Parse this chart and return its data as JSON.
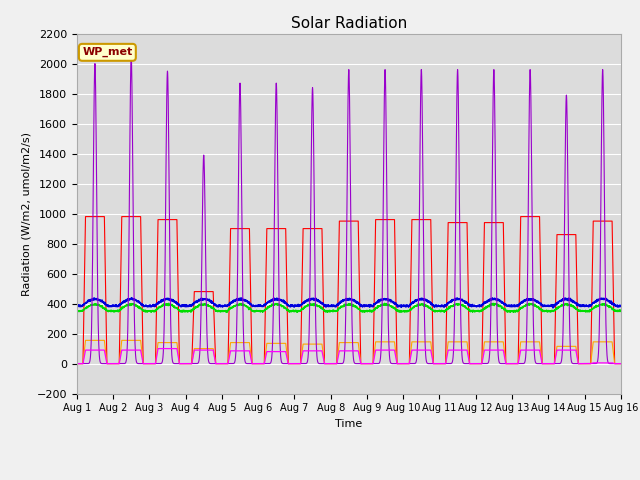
{
  "title": "Solar Radiation",
  "xlabel": "Time",
  "ylabel": "Radiation (W/m2, umol/m2/s)",
  "ylim": [
    -200,
    2200
  ],
  "xlim": [
    0,
    15
  ],
  "yticks": [
    -200,
    0,
    200,
    400,
    600,
    800,
    1000,
    1200,
    1400,
    1600,
    1800,
    2000,
    2200
  ],
  "xtick_labels": [
    "Aug 1",
    "Aug 2",
    "Aug 3",
    "Aug 4",
    "Aug 5",
    "Aug 6",
    "Aug 7",
    "Aug 8",
    "Aug 9",
    "Aug 10",
    "Aug 11",
    "Aug 12",
    "Aug 13",
    "Aug 14",
    "Aug 15",
    "Aug 16"
  ],
  "bg_color": "#dcdcdc",
  "grid_color": "#ffffff",
  "fig_bg": "#f0f0f0",
  "colors": {
    "shortwave_in": "#ff0000",
    "shortwave_out": "#ffa500",
    "longwave_in": "#00dd00",
    "longwave_out": "#0000dd",
    "par_in": "#9900cc",
    "par_out": "#ff00ff"
  },
  "legend_label": "WP_met",
  "legend_bg": "#ffffcc",
  "legend_border": "#cc9900",
  "n_days": 15,
  "sw_in_peaks": [
    980,
    980,
    960,
    480,
    900,
    900,
    900,
    950,
    960,
    960,
    940,
    940,
    980,
    860,
    950
  ],
  "par_in_peaks": [
    2000,
    2050,
    1950,
    1390,
    1870,
    1870,
    1840,
    1960,
    1960,
    1960,
    1960,
    1960,
    1960,
    1790,
    1960
  ],
  "par_out_peaks": [
    90,
    90,
    100,
    90,
    85,
    80,
    85,
    85,
    90,
    90,
    90,
    90,
    90,
    90,
    5
  ],
  "sw_out_peaks": [
    155,
    155,
    140,
    100,
    140,
    135,
    130,
    140,
    145,
    145,
    145,
    145,
    145,
    115,
    145
  ],
  "lw_in_day": 395,
  "lw_out_day": 430,
  "lw_in_night": 350,
  "lw_out_night": 385
}
